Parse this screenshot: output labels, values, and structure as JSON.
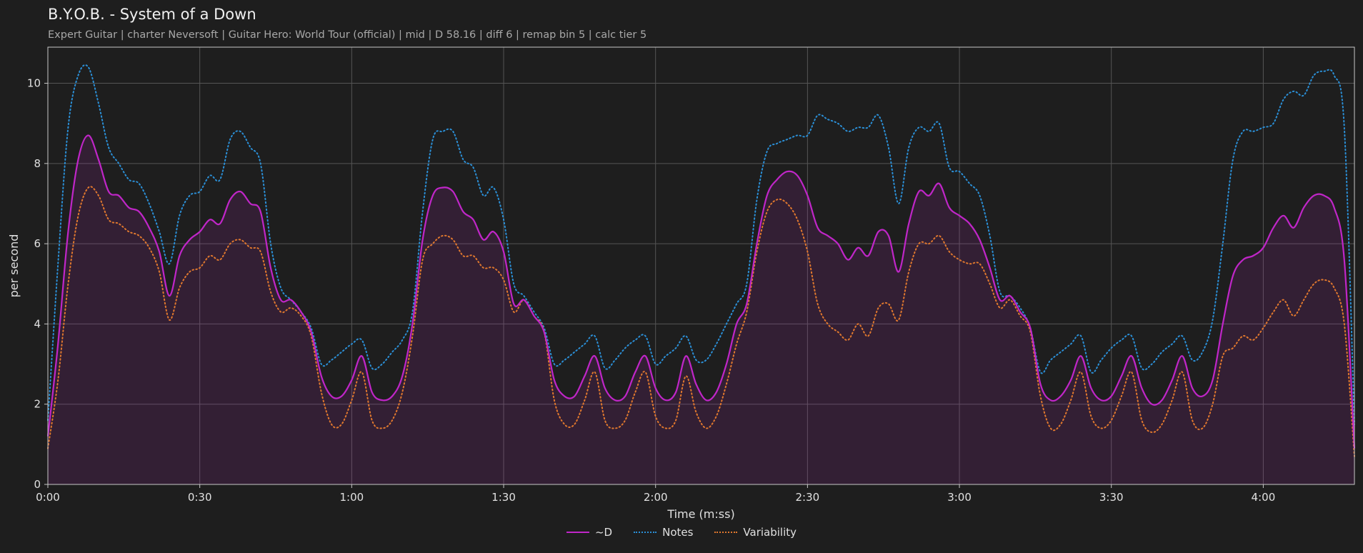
{
  "chart_data": {
    "type": "area",
    "title": "B.Y.O.B. - System of a Down",
    "subtitle": "Expert Guitar  |  charter Neversoft  |  Guitar Hero: World Tour (official)  |  mid  |  D 58.16  |  diff 6  |  remap bin 5  |  calc tier 5",
    "xlabel": "Time (m:ss)",
    "ylabel": "per second",
    "xlim": [
      0,
      258
    ],
    "ylim": [
      0,
      10.9
    ],
    "x_ticks": [
      0,
      30,
      60,
      90,
      120,
      150,
      180,
      210,
      240
    ],
    "x_tick_labels": [
      "0:00",
      "0:30",
      "1:00",
      "1:30",
      "2:00",
      "2:30",
      "3:00",
      "3:30",
      "4:00"
    ],
    "y_ticks": [
      0,
      2,
      4,
      6,
      8,
      10
    ],
    "y_tick_labels": [
      "0",
      "2",
      "4",
      "6",
      "8",
      "10"
    ],
    "grid": true,
    "legend_position": "bottom-center",
    "series": [
      {
        "name": "~D",
        "color": "#c026c8",
        "style": "solid",
        "fill": true,
        "x": [
          0,
          2,
          4,
          6,
          8,
          10,
          12,
          14,
          16,
          18,
          20,
          22,
          24,
          26,
          28,
          30,
          32,
          34,
          36,
          38,
          40,
          42,
          44,
          46,
          48,
          50,
          52,
          54,
          56,
          58,
          60,
          62,
          64,
          66,
          68,
          70,
          72,
          74,
          76,
          78,
          80,
          82,
          84,
          86,
          88,
          90,
          92,
          94,
          96,
          98,
          100,
          102,
          104,
          106,
          108,
          110,
          112,
          114,
          116,
          118,
          120,
          122,
          124,
          126,
          128,
          130,
          132,
          134,
          136,
          138,
          140,
          142,
          144,
          146,
          148,
          150,
          152,
          154,
          156,
          158,
          160,
          162,
          164,
          166,
          168,
          170,
          172,
          174,
          176,
          178,
          180,
          182,
          184,
          186,
          188,
          190,
          192,
          194,
          196,
          198,
          200,
          202,
          204,
          206,
          208,
          210,
          212,
          214,
          216,
          218,
          220,
          222,
          224,
          226,
          228,
          230,
          232,
          234,
          236,
          238,
          240,
          242,
          244,
          246,
          248,
          250,
          252,
          254,
          256,
          258
        ],
        "values": [
          1.2,
          3.5,
          6.3,
          8.1,
          8.7,
          8.1,
          7.3,
          7.2,
          6.9,
          6.8,
          6.4,
          5.8,
          4.7,
          5.7,
          6.1,
          6.3,
          6.6,
          6.5,
          7.1,
          7.3,
          7.0,
          6.8,
          5.4,
          4.6,
          4.6,
          4.3,
          3.8,
          2.7,
          2.2,
          2.2,
          2.6,
          3.2,
          2.3,
          2.1,
          2.2,
          2.7,
          4.0,
          6.1,
          7.2,
          7.4,
          7.3,
          6.8,
          6.6,
          6.1,
          6.3,
          5.8,
          4.5,
          4.6,
          4.2,
          3.8,
          2.6,
          2.2,
          2.2,
          2.7,
          3.2,
          2.4,
          2.1,
          2.2,
          2.8,
          3.2,
          2.4,
          2.1,
          2.3,
          3.2,
          2.5,
          2.1,
          2.3,
          3.0,
          4.0,
          4.5,
          6.0,
          7.2,
          7.6,
          7.8,
          7.7,
          7.2,
          6.4,
          6.2,
          6.0,
          5.6,
          5.9,
          5.7,
          6.3,
          6.2,
          5.3,
          6.5,
          7.3,
          7.2,
          7.5,
          6.9,
          6.7,
          6.5,
          6.1,
          5.4,
          4.6,
          4.7,
          4.3,
          3.9,
          2.5,
          2.1,
          2.2,
          2.6,
          3.2,
          2.4,
          2.1,
          2.2,
          2.7,
          3.2,
          2.4,
          2.0,
          2.1,
          2.6,
          3.2,
          2.4,
          2.2,
          2.6,
          4.0,
          5.2,
          5.6,
          5.7,
          5.9,
          6.4,
          6.7,
          6.4,
          6.9,
          7.2,
          7.2,
          6.9,
          5.6,
          0.9
        ]
      },
      {
        "name": "Notes",
        "color": "#2b8fd6",
        "style": "dotted",
        "fill": false,
        "x": [
          0,
          2,
          4,
          6,
          8,
          10,
          12,
          14,
          16,
          18,
          20,
          22,
          24,
          26,
          28,
          30,
          32,
          34,
          36,
          38,
          40,
          42,
          44,
          46,
          48,
          50,
          52,
          54,
          56,
          58,
          60,
          62,
          64,
          66,
          68,
          70,
          72,
          74,
          76,
          78,
          80,
          82,
          84,
          86,
          88,
          90,
          92,
          94,
          96,
          98,
          100,
          102,
          104,
          106,
          108,
          110,
          112,
          114,
          116,
          118,
          120,
          122,
          124,
          126,
          128,
          130,
          132,
          134,
          136,
          138,
          140,
          142,
          144,
          146,
          148,
          150,
          152,
          154,
          156,
          158,
          160,
          162,
          164,
          166,
          168,
          170,
          172,
          174,
          176,
          178,
          180,
          182,
          184,
          186,
          188,
          190,
          192,
          194,
          196,
          198,
          200,
          202,
          204,
          206,
          208,
          210,
          212,
          214,
          216,
          218,
          220,
          222,
          224,
          226,
          228,
          230,
          232,
          234,
          236,
          238,
          240,
          242,
          244,
          246,
          248,
          250,
          252,
          254,
          256,
          258
        ],
        "values": [
          1.6,
          5.5,
          8.9,
          10.2,
          10.4,
          9.5,
          8.4,
          8.0,
          7.6,
          7.5,
          7.0,
          6.3,
          5.5,
          6.7,
          7.2,
          7.3,
          7.7,
          7.6,
          8.6,
          8.8,
          8.4,
          8.0,
          6.0,
          4.9,
          4.6,
          4.3,
          3.9,
          3.0,
          3.1,
          3.3,
          3.5,
          3.6,
          2.9,
          3.0,
          3.3,
          3.6,
          4.3,
          6.8,
          8.6,
          8.8,
          8.8,
          8.1,
          7.9,
          7.2,
          7.4,
          6.6,
          5.0,
          4.7,
          4.3,
          3.9,
          3.0,
          3.1,
          3.3,
          3.5,
          3.7,
          2.9,
          3.1,
          3.4,
          3.6,
          3.7,
          3.0,
          3.2,
          3.4,
          3.7,
          3.1,
          3.1,
          3.5,
          4.0,
          4.5,
          5.0,
          7.1,
          8.3,
          8.5,
          8.6,
          8.7,
          8.7,
          9.2,
          9.1,
          9.0,
          8.8,
          8.9,
          8.9,
          9.2,
          8.4,
          7.0,
          8.4,
          8.9,
          8.8,
          9.0,
          7.9,
          7.8,
          7.5,
          7.2,
          6.2,
          4.8,
          4.7,
          4.4,
          3.9,
          2.8,
          3.1,
          3.3,
          3.5,
          3.7,
          2.8,
          3.1,
          3.4,
          3.6,
          3.7,
          2.9,
          3.0,
          3.3,
          3.5,
          3.7,
          3.1,
          3.3,
          4.1,
          6.0,
          8.1,
          8.8,
          8.8,
          8.9,
          9.0,
          9.6,
          9.8,
          9.7,
          10.2,
          10.3,
          10.2,
          8.9,
          1.5
        ]
      },
      {
        "name": "Variability",
        "color": "#e0782e",
        "style": "dotted",
        "fill": false,
        "x": [
          0,
          2,
          4,
          6,
          8,
          10,
          12,
          14,
          16,
          18,
          20,
          22,
          24,
          26,
          28,
          30,
          32,
          34,
          36,
          38,
          40,
          42,
          44,
          46,
          48,
          50,
          52,
          54,
          56,
          58,
          60,
          62,
          64,
          66,
          68,
          70,
          72,
          74,
          76,
          78,
          80,
          82,
          84,
          86,
          88,
          90,
          92,
          94,
          96,
          98,
          100,
          102,
          104,
          106,
          108,
          110,
          112,
          114,
          116,
          118,
          120,
          122,
          124,
          126,
          128,
          130,
          132,
          134,
          136,
          138,
          140,
          142,
          144,
          146,
          148,
          150,
          152,
          154,
          156,
          158,
          160,
          162,
          164,
          166,
          168,
          170,
          172,
          174,
          176,
          178,
          180,
          182,
          184,
          186,
          188,
          190,
          192,
          194,
          196,
          198,
          200,
          202,
          204,
          206,
          208,
          210,
          212,
          214,
          216,
          218,
          220,
          222,
          224,
          226,
          228,
          230,
          232,
          234,
          236,
          238,
          240,
          242,
          244,
          246,
          248,
          250,
          252,
          254,
          256,
          258
        ],
        "values": [
          0.9,
          2.6,
          5.0,
          6.7,
          7.4,
          7.2,
          6.6,
          6.5,
          6.3,
          6.2,
          5.9,
          5.3,
          4.1,
          4.9,
          5.3,
          5.4,
          5.7,
          5.6,
          6.0,
          6.1,
          5.9,
          5.8,
          4.8,
          4.3,
          4.4,
          4.2,
          3.7,
          2.3,
          1.5,
          1.5,
          2.1,
          2.8,
          1.6,
          1.4,
          1.6,
          2.3,
          3.7,
          5.6,
          6.0,
          6.2,
          6.1,
          5.7,
          5.7,
          5.4,
          5.4,
          5.1,
          4.3,
          4.6,
          4.2,
          3.8,
          2.1,
          1.5,
          1.5,
          2.1,
          2.8,
          1.6,
          1.4,
          1.6,
          2.3,
          2.8,
          1.7,
          1.4,
          1.6,
          2.7,
          1.8,
          1.4,
          1.7,
          2.5,
          3.5,
          4.3,
          5.8,
          6.8,
          7.1,
          7.0,
          6.6,
          5.8,
          4.5,
          4.0,
          3.8,
          3.6,
          4.0,
          3.7,
          4.4,
          4.5,
          4.1,
          5.3,
          6.0,
          6.0,
          6.2,
          5.8,
          5.6,
          5.5,
          5.5,
          5.0,
          4.4,
          4.6,
          4.2,
          3.8,
          2.2,
          1.4,
          1.5,
          2.1,
          2.8,
          1.7,
          1.4,
          1.6,
          2.2,
          2.8,
          1.6,
          1.3,
          1.5,
          2.1,
          2.8,
          1.6,
          1.4,
          2.0,
          3.2,
          3.4,
          3.7,
          3.6,
          3.9,
          4.3,
          4.6,
          4.2,
          4.6,
          5.0,
          5.1,
          4.9,
          4.0,
          0.7
        ]
      }
    ]
  }
}
